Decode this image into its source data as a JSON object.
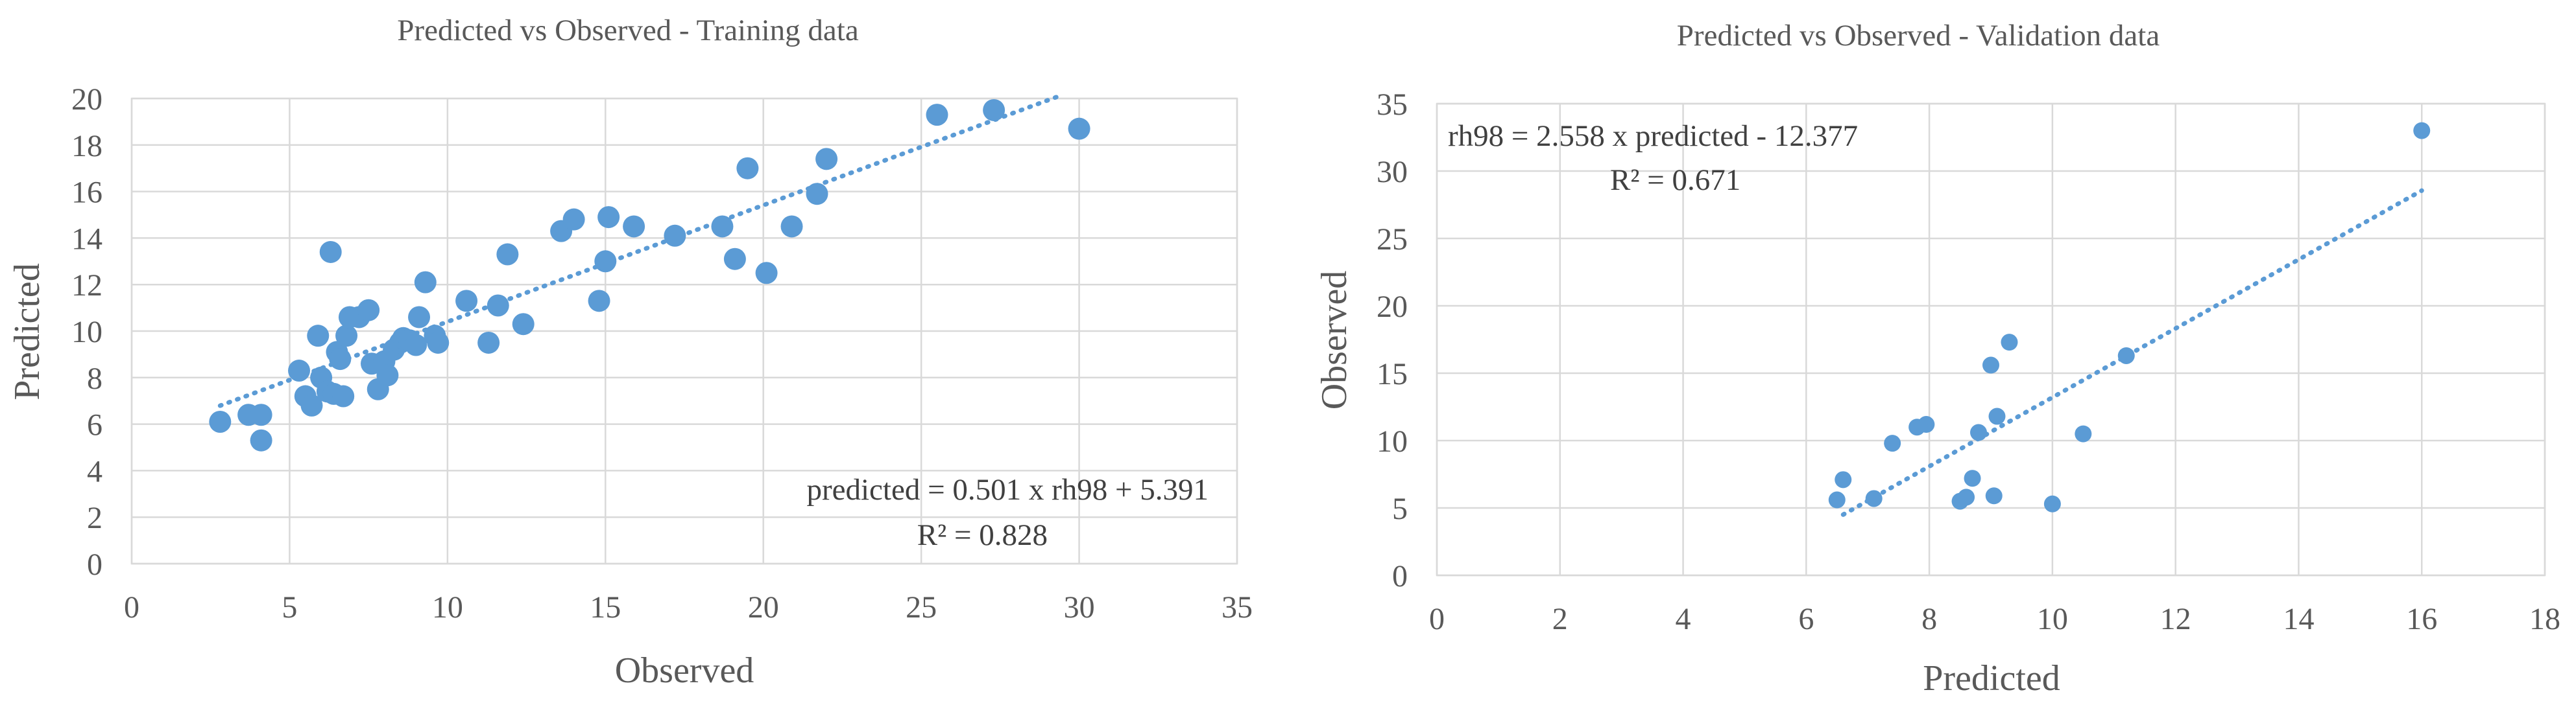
{
  "colors": {
    "marker": "#5b9bd5",
    "trend": "#5b9bd5",
    "grid": "#d9d9d9",
    "text": "#595959"
  },
  "chart_data": [
    {
      "type": "scatter",
      "title": "Predicted vs Observed - Training data",
      "xlabel": "Observed",
      "ylabel": "Predicted",
      "xlim": [
        0,
        35
      ],
      "ylim": [
        0,
        20
      ],
      "xticks": [
        0,
        5,
        10,
        15,
        20,
        25,
        30,
        35
      ],
      "yticks": [
        0,
        2,
        4,
        6,
        8,
        10,
        12,
        14,
        16,
        18,
        20
      ],
      "grid": true,
      "trendline": {
        "type": "linear",
        "slope": 0.501,
        "intercept": 5.391,
        "x_range": [
          2.8,
          29.5
        ],
        "style": "dotted"
      },
      "annotations": [
        "predicted = 0.501 x rh98 + 5.391",
        "R² = 0.828"
      ],
      "points": [
        {
          "x": 2.8,
          "y": 6.1
        },
        {
          "x": 3.7,
          "y": 6.4
        },
        {
          "x": 4.1,
          "y": 6.4
        },
        {
          "x": 4.1,
          "y": 5.3
        },
        {
          "x": 5.3,
          "y": 8.3
        },
        {
          "x": 5.5,
          "y": 7.2
        },
        {
          "x": 5.7,
          "y": 6.8
        },
        {
          "x": 5.9,
          "y": 9.8
        },
        {
          "x": 6.0,
          "y": 8.0
        },
        {
          "x": 6.2,
          "y": 7.4
        },
        {
          "x": 6.3,
          "y": 13.4
        },
        {
          "x": 6.4,
          "y": 7.3
        },
        {
          "x": 6.5,
          "y": 9.1
        },
        {
          "x": 6.6,
          "y": 8.8
        },
        {
          "x": 6.7,
          "y": 7.2
        },
        {
          "x": 6.8,
          "y": 9.8
        },
        {
          "x": 6.9,
          "y": 10.6
        },
        {
          "x": 7.2,
          "y": 10.6
        },
        {
          "x": 7.5,
          "y": 10.9
        },
        {
          "x": 7.6,
          "y": 8.6
        },
        {
          "x": 7.8,
          "y": 7.5
        },
        {
          "x": 8.0,
          "y": 8.7
        },
        {
          "x": 8.1,
          "y": 8.1
        },
        {
          "x": 8.3,
          "y": 9.2
        },
        {
          "x": 8.5,
          "y": 9.5
        },
        {
          "x": 8.6,
          "y": 9.7
        },
        {
          "x": 8.8,
          "y": 9.6
        },
        {
          "x": 9.0,
          "y": 9.4
        },
        {
          "x": 9.1,
          "y": 10.6
        },
        {
          "x": 9.3,
          "y": 12.1
        },
        {
          "x": 9.6,
          "y": 9.8
        },
        {
          "x": 9.7,
          "y": 9.5
        },
        {
          "x": 10.6,
          "y": 11.3
        },
        {
          "x": 11.3,
          "y": 9.5
        },
        {
          "x": 11.6,
          "y": 11.1
        },
        {
          "x": 11.9,
          "y": 13.3
        },
        {
          "x": 12.4,
          "y": 10.3
        },
        {
          "x": 13.6,
          "y": 14.3
        },
        {
          "x": 14.0,
          "y": 14.8
        },
        {
          "x": 14.8,
          "y": 11.3
        },
        {
          "x": 15.0,
          "y": 13.0
        },
        {
          "x": 15.1,
          "y": 14.9
        },
        {
          "x": 15.9,
          "y": 14.5
        },
        {
          "x": 17.2,
          "y": 14.1
        },
        {
          "x": 18.7,
          "y": 14.5
        },
        {
          "x": 19.1,
          "y": 13.1
        },
        {
          "x": 19.5,
          "y": 17.0
        },
        {
          "x": 20.1,
          "y": 12.5
        },
        {
          "x": 20.9,
          "y": 14.5
        },
        {
          "x": 21.7,
          "y": 15.9
        },
        {
          "x": 22.0,
          "y": 17.4
        },
        {
          "x": 25.5,
          "y": 19.3
        },
        {
          "x": 27.3,
          "y": 19.5
        },
        {
          "x": 30.0,
          "y": 18.7
        }
      ]
    },
    {
      "type": "scatter",
      "title": "Predicted vs Observed - Validation data",
      "xlabel": "Predicted",
      "ylabel": "Observed",
      "xlim": [
        0,
        18
      ],
      "ylim": [
        0,
        35
      ],
      "xticks": [
        0,
        2,
        4,
        6,
        8,
        10,
        12,
        14,
        16,
        18
      ],
      "yticks": [
        0,
        5,
        10,
        15,
        20,
        25,
        30,
        35
      ],
      "grid": true,
      "trendline": {
        "type": "linear",
        "slope": 2.558,
        "intercept": -12.377,
        "x_range": [
          6.6,
          16.0
        ],
        "style": "dotted"
      },
      "annotations": [
        "rh98 = 2.558 x predicted - 12.377",
        "R² = 0.671"
      ],
      "points": [
        {
          "x": 6.5,
          "y": 5.6
        },
        {
          "x": 6.6,
          "y": 7.1
        },
        {
          "x": 7.1,
          "y": 5.7
        },
        {
          "x": 7.4,
          "y": 9.8
        },
        {
          "x": 7.8,
          "y": 11.0
        },
        {
          "x": 7.95,
          "y": 11.2
        },
        {
          "x": 8.5,
          "y": 5.5
        },
        {
          "x": 8.6,
          "y": 5.8
        },
        {
          "x": 8.7,
          "y": 7.2
        },
        {
          "x": 8.8,
          "y": 10.6
        },
        {
          "x": 9.0,
          "y": 15.6
        },
        {
          "x": 9.05,
          "y": 5.9
        },
        {
          "x": 9.1,
          "y": 11.8
        },
        {
          "x": 9.3,
          "y": 17.3
        },
        {
          "x": 10.0,
          "y": 5.3
        },
        {
          "x": 10.5,
          "y": 10.5
        },
        {
          "x": 11.2,
          "y": 16.3
        },
        {
          "x": 16.0,
          "y": 33.0
        }
      ]
    }
  ]
}
